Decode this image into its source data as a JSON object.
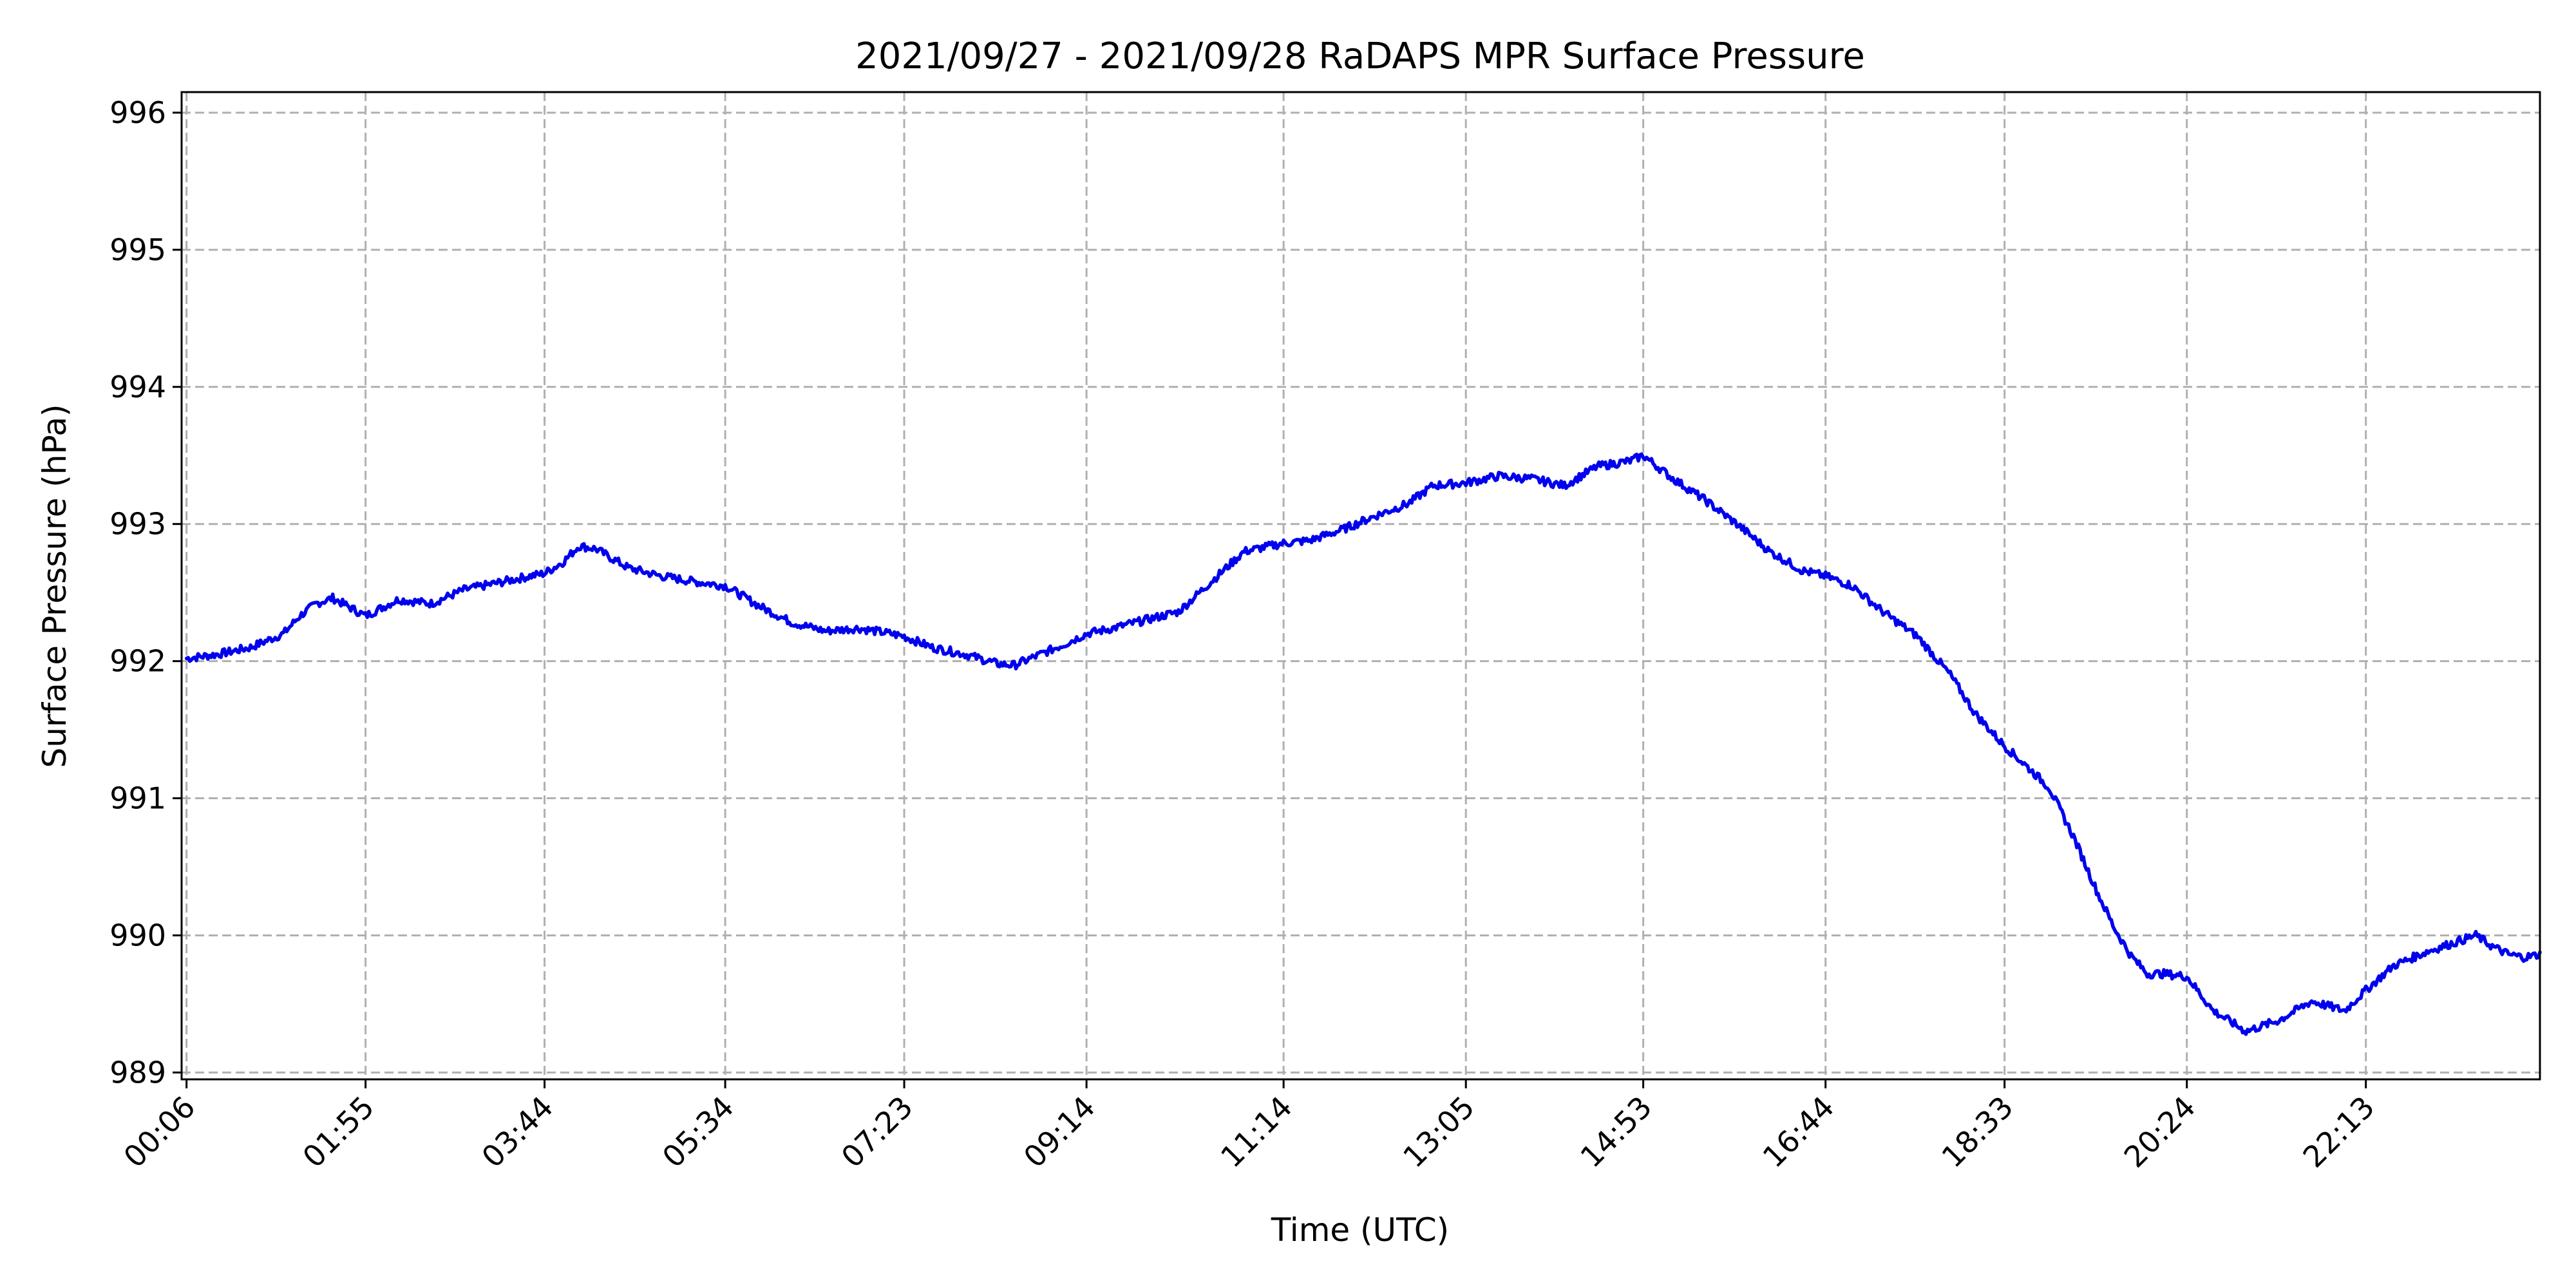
{
  "chart_data": {
    "type": "line",
    "title": "2021/09/27 - 2021/09/28 RaDAPS MPR Surface Pressure",
    "xlabel": "Time (UTC)",
    "ylabel": "Surface Pressure (hPa)",
    "xlim": [
      "00:03",
      "23:59"
    ],
    "ylim": [
      988.95,
      996.15
    ],
    "x_ticks": [
      "00:06",
      "01:55",
      "03:44",
      "05:34",
      "07:23",
      "09:14",
      "11:14",
      "13:05",
      "14:53",
      "16:44",
      "18:33",
      "20:24",
      "22:13"
    ],
    "y_ticks": [
      989,
      990,
      991,
      992,
      993,
      994,
      995,
      996
    ],
    "grid": true,
    "colors": {
      "series": "#0000ee"
    },
    "series": [
      {
        "color": "#0000ee",
        "x": [
          "00:06",
          "00:25",
          "00:45",
          "01:05",
          "01:15",
          "01:25",
          "01:35",
          "01:55",
          "02:15",
          "02:35",
          "02:55",
          "03:15",
          "03:35",
          "03:44",
          "03:55",
          "04:05",
          "04:15",
          "04:35",
          "04:55",
          "05:15",
          "05:34",
          "05:55",
          "06:15",
          "06:35",
          "06:55",
          "07:15",
          "07:23",
          "07:40",
          "08:00",
          "08:20",
          "08:30",
          "08:40",
          "09:00",
          "09:14",
          "09:30",
          "09:50",
          "10:10",
          "10:30",
          "10:50",
          "11:14",
          "11:30",
          "11:50",
          "12:10",
          "12:30",
          "12:45",
          "13:05",
          "13:25",
          "13:45",
          "14:05",
          "14:25",
          "14:45",
          "14:53",
          "15:10",
          "15:30",
          "15:50",
          "16:10",
          "16:30",
          "16:44",
          "17:00",
          "17:20",
          "17:40",
          "18:00",
          "18:15",
          "18:33",
          "18:45",
          "19:00",
          "19:15",
          "19:30",
          "19:40",
          "19:50",
          "20:00",
          "20:10",
          "20:24",
          "20:40",
          "21:00",
          "21:20",
          "21:40",
          "22:00",
          "22:13",
          "22:30",
          "22:50",
          "23:10",
          "23:20",
          "23:30",
          "23:40",
          "23:50",
          "23:59"
        ],
        "y": [
          992.02,
          992.05,
          992.1,
          992.2,
          992.33,
          992.42,
          992.46,
          992.33,
          992.45,
          992.42,
          992.52,
          992.57,
          992.62,
          992.64,
          992.72,
          992.84,
          992.82,
          992.68,
          992.62,
          992.58,
          992.55,
          992.4,
          992.28,
          992.22,
          992.24,
          992.2,
          992.18,
          992.1,
          992.05,
          991.98,
          991.97,
          992.02,
          992.12,
          992.2,
          992.24,
          992.3,
          992.36,
          992.58,
          992.8,
          992.86,
          992.88,
          992.96,
          993.06,
          993.15,
          993.28,
          993.3,
          993.35,
          993.33,
          993.28,
          993.42,
          993.46,
          993.5,
          993.34,
          993.18,
          993.0,
          992.8,
          992.66,
          992.62,
          992.55,
          992.35,
          992.18,
          991.9,
          991.62,
          991.38,
          991.25,
          991.08,
          990.72,
          990.3,
          990.05,
          989.85,
          989.72,
          989.72,
          989.7,
          989.45,
          989.3,
          989.38,
          989.52,
          989.45,
          989.6,
          989.78,
          989.88,
          989.96,
          990.0,
          989.92,
          989.86,
          989.84,
          989.86
        ]
      }
    ]
  }
}
